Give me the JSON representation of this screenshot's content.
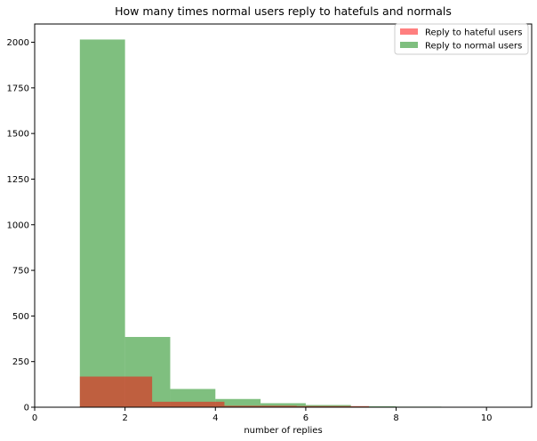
{
  "chart_data": {
    "type": "bar",
    "title": "How many times normal users reply to hatefuls and normals",
    "xlabel": "number of replies",
    "ylabel": "",
    "xlim": [
      0,
      11
    ],
    "ylim": [
      0,
      2100
    ],
    "xticks": [
      0,
      2,
      4,
      6,
      8,
      10
    ],
    "yticks": [
      0,
      250,
      500,
      750,
      1000,
      1250,
      1500,
      1750,
      2000
    ],
    "grid": false,
    "legend_position": "top-right",
    "series": [
      {
        "name": "Reply to normal users",
        "color": "#008000",
        "opacity": 0.5,
        "bins": [
          {
            "x0": 1,
            "x1": 2,
            "value": 2015
          },
          {
            "x0": 2,
            "x1": 3,
            "value": 385
          },
          {
            "x0": 3,
            "x1": 4,
            "value": 100
          },
          {
            "x0": 4,
            "x1": 5,
            "value": 45
          },
          {
            "x0": 5,
            "x1": 6,
            "value": 22
          },
          {
            "x0": 6,
            "x1": 7,
            "value": 12
          },
          {
            "x0": 7,
            "x1": 8,
            "value": 5
          },
          {
            "x0": 8,
            "x1": 9,
            "value": 3
          },
          {
            "x0": 9,
            "x1": 10,
            "value": 2
          },
          {
            "x0": 10,
            "x1": 11,
            "value": 2
          }
        ]
      },
      {
        "name": "Reply to hateful users",
        "color": "#ff0000",
        "opacity": 0.5,
        "bins": [
          {
            "x0": 1.0,
            "x1": 2.6,
            "value": 168
          },
          {
            "x0": 2.6,
            "x1": 4.2,
            "value": 30
          },
          {
            "x0": 4.2,
            "x1": 5.8,
            "value": 8
          },
          {
            "x0": 5.8,
            "x1": 7.4,
            "value": 6
          },
          {
            "x0": 7.4,
            "x1": 9.0,
            "value": 1
          },
          {
            "x0": 9.0,
            "x1": 10.6,
            "value": 1
          },
          {
            "x0": 10.6,
            "x1": 12.2,
            "value": 1
          }
        ]
      }
    ],
    "legend": [
      {
        "label": "Reply to hateful users",
        "color": "#ff0000"
      },
      {
        "label": "Reply to normal users",
        "color": "#008000"
      }
    ]
  }
}
